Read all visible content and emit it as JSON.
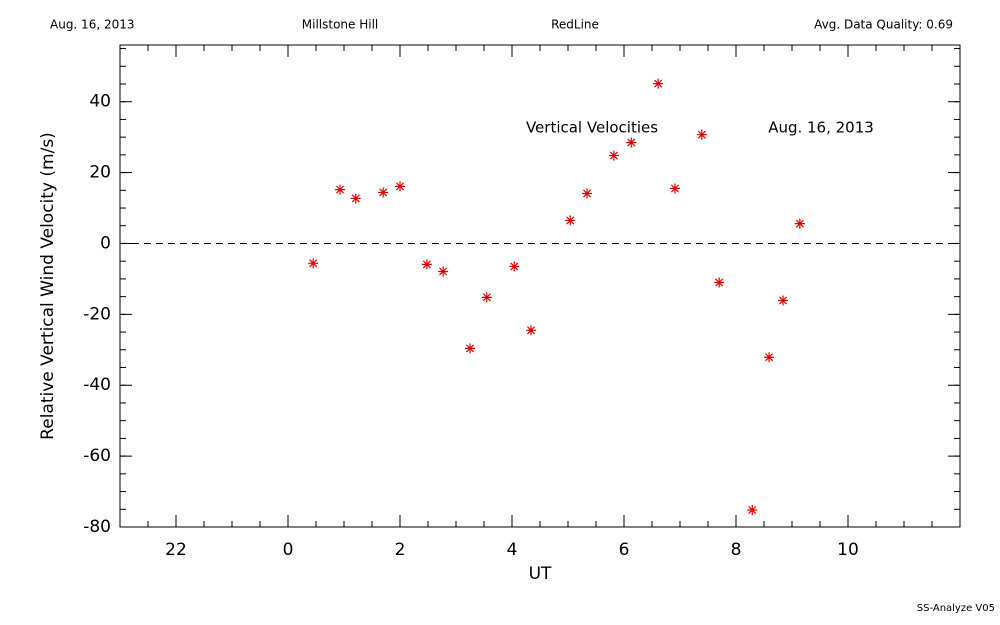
{
  "chart_data": {
    "type": "scatter",
    "header": [
      "Aug. 16, 2013",
      "Millstone Hill",
      "RedLine",
      "Avg. Data Quality: 0.69"
    ],
    "annotations": [
      "Vertical Velocities",
      "Aug. 16, 2013"
    ],
    "footer": "SS-Analyze V05",
    "xlabel": "UT",
    "ylabel": "Relative Vertical Wind Velocity (m/s)",
    "color": "#e00000",
    "x": [
      0.45,
      0.93,
      1.21,
      1.7,
      2.0,
      2.48,
      2.77,
      3.25,
      3.55,
      4.04,
      4.34,
      5.04,
      5.34,
      5.82,
      6.13,
      6.61,
      6.91,
      7.39,
      7.7,
      8.29,
      8.59,
      8.84,
      9.14
    ],
    "values": [
      -5.6,
      15.2,
      12.7,
      14.4,
      16.1,
      -5.9,
      -7.9,
      -29.6,
      -15.2,
      -6.5,
      -24.5,
      6.5,
      14.1,
      24.8,
      28.5,
      45.1,
      15.5,
      30.7,
      -11.0,
      -75.2,
      -32.1,
      -16.1,
      5.6
    ],
    "xlim": [
      -3,
      12
    ],
    "xticks": [
      {
        "value": -2,
        "label": "22"
      },
      0,
      2,
      4,
      6,
      8,
      10
    ],
    "ylim": [
      -80,
      56
    ],
    "yticks": [
      -80,
      -60,
      -40,
      -20,
      0,
      20,
      40
    ]
  }
}
